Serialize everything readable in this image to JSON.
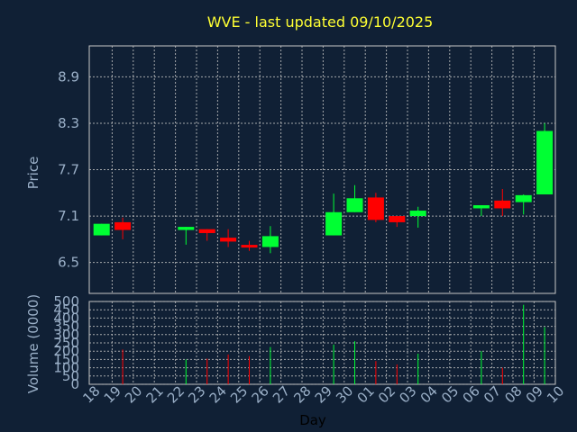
{
  "title": "WVE - last updated 09/10/2025",
  "colors": {
    "background": "#102035",
    "up": "#00ff33",
    "down": "#ff0000",
    "title": "#ffff33",
    "tick": "#9bb0c8",
    "grid": "#c0c0c0"
  },
  "chart_data": [
    {
      "type": "candlestick",
      "ylabel": "Price",
      "ylim": [
        6.1,
        9.3
      ],
      "yticks": [
        "6.5",
        "7.1",
        "7.7",
        "8.3",
        "8.9"
      ],
      "grid": true,
      "candles": [
        {
          "day": "18",
          "open": 6.85,
          "close": 7.0,
          "high": 7.0,
          "low": 6.85
        },
        {
          "day": "19",
          "open": 7.02,
          "close": 6.92,
          "high": 7.08,
          "low": 6.8
        },
        {
          "day": "22",
          "open": 6.92,
          "close": 6.96,
          "high": 6.96,
          "low": 6.73
        },
        {
          "day": "23",
          "open": 6.93,
          "close": 6.88,
          "high": 6.93,
          "low": 6.78
        },
        {
          "day": "24",
          "open": 6.82,
          "close": 6.77,
          "high": 6.93,
          "low": 6.7
        },
        {
          "day": "25",
          "open": 6.72,
          "close": 6.7,
          "high": 6.78,
          "low": 6.65
        },
        {
          "day": "26",
          "open": 6.7,
          "close": 6.84,
          "high": 6.97,
          "low": 6.62
        },
        {
          "day": "29",
          "open": 6.85,
          "close": 7.15,
          "high": 7.39,
          "low": 6.85
        },
        {
          "day": "30",
          "open": 7.15,
          "close": 7.33,
          "high": 7.5,
          "low": 7.15
        },
        {
          "day": "01",
          "open": 7.34,
          "close": 7.05,
          "high": 7.4,
          "low": 7.02
        },
        {
          "day": "02",
          "open": 7.1,
          "close": 7.02,
          "high": 7.1,
          "low": 6.96
        },
        {
          "day": "03",
          "open": 7.1,
          "close": 7.17,
          "high": 7.22,
          "low": 6.95
        },
        {
          "day": "06",
          "open": 7.2,
          "close": 7.24,
          "high": 7.24,
          "low": 7.1
        },
        {
          "day": "07",
          "open": 7.3,
          "close": 7.2,
          "high": 7.45,
          "low": 7.1
        },
        {
          "day": "08",
          "open": 7.28,
          "close": 7.37,
          "high": 7.38,
          "low": 7.12
        },
        {
          "day": "09",
          "open": 7.38,
          "close": 8.2,
          "high": 8.3,
          "low": 7.38
        }
      ]
    },
    {
      "type": "bar",
      "ylabel": "Volume (0000)",
      "xlabel": "Day",
      "ylim": [
        0,
        500
      ],
      "yticks": [
        "0",
        "50",
        "100",
        "150",
        "200",
        "250",
        "300",
        "350",
        "400",
        "450",
        "500"
      ],
      "grid": true,
      "x_ticks": [
        "18",
        "19",
        "20",
        "21",
        "22",
        "23",
        "24",
        "25",
        "26",
        "27",
        "28",
        "29",
        "30",
        "01",
        "02",
        "03",
        "04",
        "05",
        "06",
        "07",
        "08",
        "09",
        "10"
      ],
      "volumes": [
        {
          "day": "18",
          "value": 0,
          "dir": "up"
        },
        {
          "day": "19",
          "value": 210,
          "dir": "down"
        },
        {
          "day": "22",
          "value": 150,
          "dir": "up"
        },
        {
          "day": "23",
          "value": 155,
          "dir": "down"
        },
        {
          "day": "24",
          "value": 180,
          "dir": "down"
        },
        {
          "day": "25",
          "value": 170,
          "dir": "down"
        },
        {
          "day": "26",
          "value": 225,
          "dir": "up"
        },
        {
          "day": "29",
          "value": 240,
          "dir": "up"
        },
        {
          "day": "30",
          "value": 260,
          "dir": "up"
        },
        {
          "day": "01",
          "value": 140,
          "dir": "down"
        },
        {
          "day": "02",
          "value": 120,
          "dir": "down"
        },
        {
          "day": "03",
          "value": 185,
          "dir": "up"
        },
        {
          "day": "06",
          "value": 200,
          "dir": "up"
        },
        {
          "day": "07",
          "value": 100,
          "dir": "down"
        },
        {
          "day": "08",
          "value": 480,
          "dir": "up"
        },
        {
          "day": "09",
          "value": 345,
          "dir": "up"
        }
      ]
    }
  ]
}
